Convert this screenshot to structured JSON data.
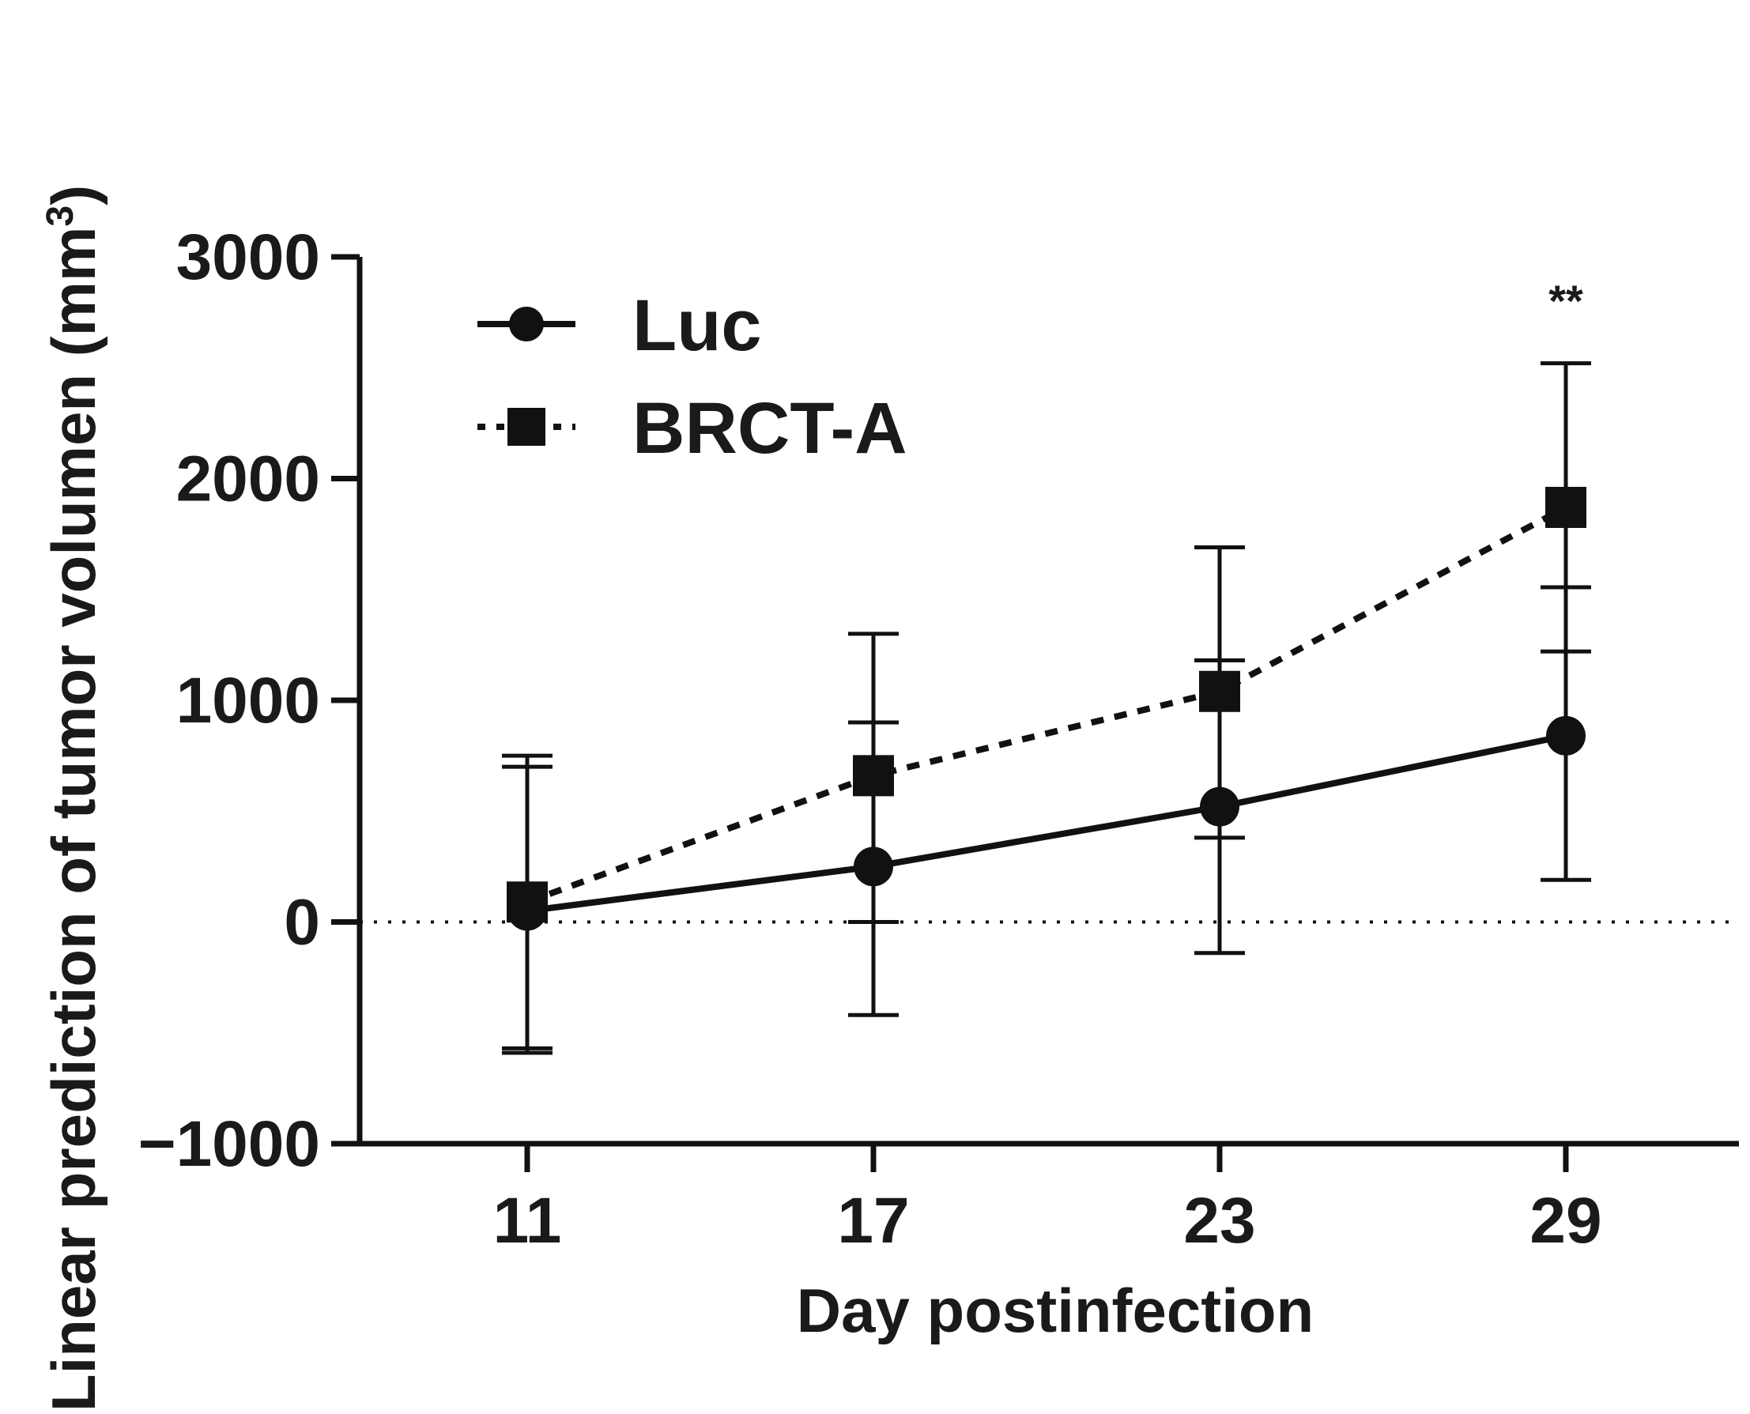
{
  "chart_data": {
    "type": "line",
    "title": "",
    "xlabel": "Day postinfection",
    "ylabel_main": "Linear prediction of tumor volumen (mm",
    "ylabel_sup": "3",
    "ylabel_close": ")",
    "x_categories": [
      "11",
      "17",
      "23",
      "29"
    ],
    "ylim": [
      -1000,
      3000
    ],
    "yticks": [
      -1000,
      0,
      1000,
      2000,
      3000
    ],
    "ytick_labels": [
      "−1000",
      "0",
      "1000",
      "2000",
      "3000"
    ],
    "reference_line": {
      "y": 0,
      "style": "dotted"
    },
    "legend_position": "top-left",
    "series": [
      {
        "name": "Luc",
        "marker": "circle",
        "line_style": "solid",
        "values": [
          50,
          250,
          520,
          840
        ],
        "error_upper": [
          700,
          900,
          1180,
          1510
        ],
        "error_lower": [
          -590,
          -420,
          -140,
          190
        ]
      },
      {
        "name": "BRCT-A",
        "marker": "square",
        "line_style": "dashed",
        "values": [
          90,
          660,
          1040,
          1870
        ],
        "error_upper": [
          750,
          1300,
          1690,
          2520
        ],
        "error_lower": [
          -570,
          0,
          380,
          1220
        ]
      }
    ],
    "annotations": [
      {
        "x": "29",
        "text": "**"
      }
    ]
  }
}
